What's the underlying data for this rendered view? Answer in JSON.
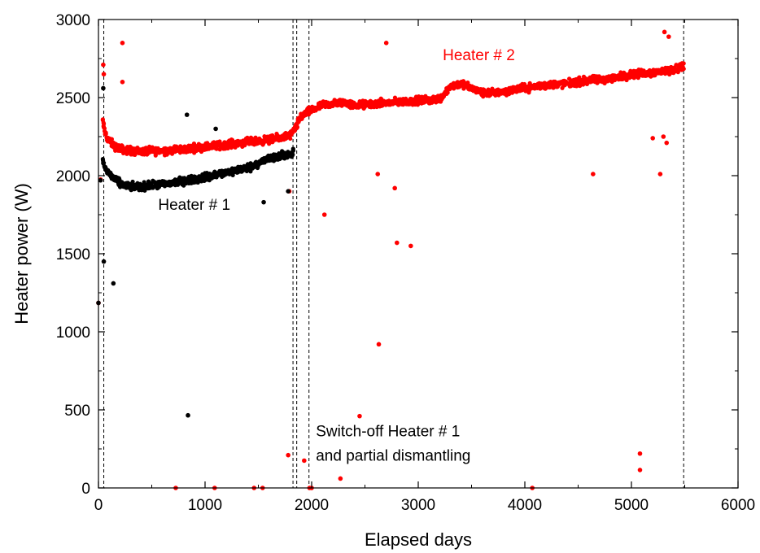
{
  "chart_data": {
    "type": "scatter",
    "xlabel": "Elapsed days",
    "ylabel": "Heater power (W)",
    "xlim": [
      0,
      6000
    ],
    "ylim": [
      0,
      3000
    ],
    "xticks": [
      "0",
      "1000",
      "2000",
      "3000",
      "4000",
      "5000",
      "6000"
    ],
    "yticks": [
      "0",
      "500",
      "1000",
      "1500",
      "2000",
      "2500",
      "3000"
    ],
    "grid": false,
    "legend": "none",
    "colors": {
      "heater1": "#000000",
      "heater2": "#ff0000"
    },
    "event_lines_x": [
      50,
      1825,
      1860,
      1975,
      5490
    ],
    "annotations": [
      {
        "text": "Heater # 1",
        "x": 560,
        "y": 1780,
        "color": "#000000"
      },
      {
        "text": "Heater # 2",
        "x": 3230,
        "y": 2740,
        "color": "#ff0000"
      },
      {
        "text": "Switch-off Heater # 1",
        "x": 2040,
        "y": 330,
        "color": "#000000"
      },
      {
        "text": "and partial dismantling",
        "x": 2040,
        "y": 175,
        "color": "#000000"
      }
    ],
    "series": [
      {
        "name": "Heater # 1",
        "trend_x": [
          40,
          60,
          90,
          120,
          160,
          220,
          300,
          400,
          600,
          800,
          1000,
          1200,
          1400,
          1500,
          1600,
          1700,
          1800,
          1830
        ],
        "trend_y": [
          2100,
          2050,
          2020,
          2000,
          1970,
          1945,
          1930,
          1930,
          1945,
          1965,
          1990,
          2020,
          2050,
          2080,
          2110,
          2125,
          2140,
          2150
        ],
        "outliers": [
          [
            0,
            1185
          ],
          [
            20,
            1970
          ],
          [
            50,
            1450
          ],
          [
            45,
            2560
          ],
          [
            140,
            1310
          ],
          [
            840,
            465
          ],
          [
            830,
            2390
          ],
          [
            1100,
            2300
          ],
          [
            1550,
            1830
          ],
          [
            1780,
            1900
          ]
        ]
      },
      {
        "name": "Heater # 2",
        "trend_x": [
          40,
          60,
          90,
          150,
          220,
          300,
          400,
          600,
          800,
          1000,
          1200,
          1400,
          1500,
          1600,
          1700,
          1800,
          1830,
          1900,
          2000,
          2100,
          2200,
          2300,
          2400,
          2600,
          2800,
          3000,
          3200,
          3300,
          3400,
          3500,
          3600,
          3700,
          3800,
          4000,
          4200,
          4400,
          4600,
          4800,
          5000,
          5200,
          5300,
          5400,
          5490
        ],
        "trend_y": [
          2350,
          2280,
          2230,
          2190,
          2170,
          2160,
          2155,
          2160,
          2170,
          2185,
          2200,
          2215,
          2220,
          2230,
          2240,
          2260,
          2280,
          2380,
          2420,
          2450,
          2460,
          2470,
          2450,
          2460,
          2470,
          2480,
          2490,
          2570,
          2590,
          2560,
          2530,
          2530,
          2540,
          2560,
          2580,
          2590,
          2610,
          2620,
          2650,
          2660,
          2670,
          2680,
          2700
        ],
        "outliers": [
          [
            0,
            1185
          ],
          [
            20,
            1975
          ],
          [
            45,
            2710
          ],
          [
            50,
            2650
          ],
          [
            225,
            2850
          ],
          [
            225,
            2600
          ],
          [
            725,
            0
          ],
          [
            1090,
            0
          ],
          [
            1460,
            0
          ],
          [
            1540,
            0
          ],
          [
            1780,
            210
          ],
          [
            1790,
            1900
          ],
          [
            1930,
            175
          ],
          [
            1980,
            0
          ],
          [
            2000,
            0
          ],
          [
            2120,
            1750
          ],
          [
            2270,
            60
          ],
          [
            2450,
            460
          ],
          [
            2620,
            2010
          ],
          [
            2630,
            920
          ],
          [
            2700,
            2850
          ],
          [
            2780,
            1920
          ],
          [
            2800,
            1570
          ],
          [
            2930,
            1550
          ],
          [
            4070,
            0
          ],
          [
            4640,
            2010
          ],
          [
            5080,
            220
          ],
          [
            5080,
            115
          ],
          [
            5270,
            2010
          ],
          [
            5310,
            2920
          ],
          [
            5300,
            2250
          ],
          [
            5330,
            2210
          ],
          [
            5350,
            2890
          ],
          [
            5200,
            2240
          ]
        ]
      }
    ]
  }
}
